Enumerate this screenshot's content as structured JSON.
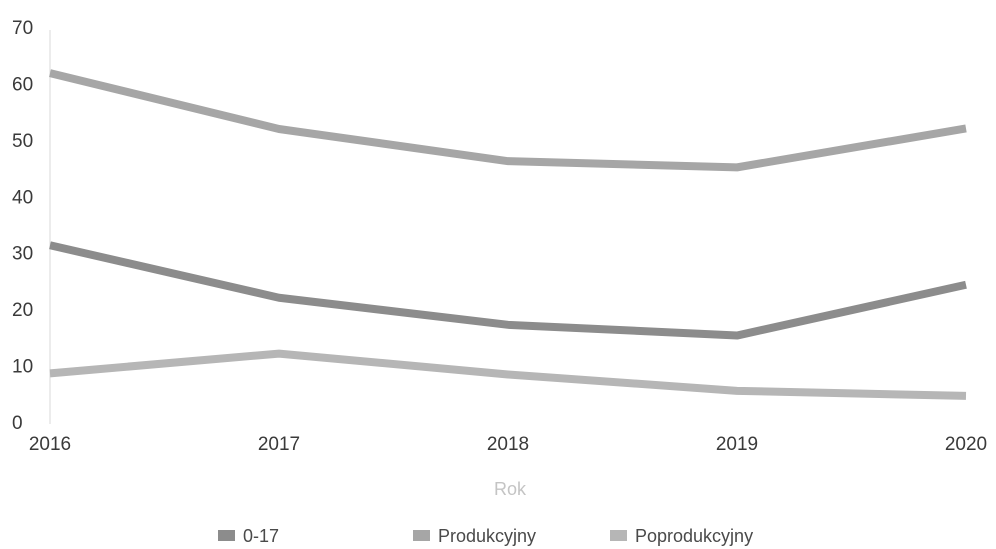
{
  "chart_data": {
    "type": "line",
    "title": "",
    "xlabel": "Rok",
    "ylabel": "",
    "categories": [
      "2016",
      "2017",
      "2018",
      "2019",
      "2020"
    ],
    "yticks": [
      "0",
      "10",
      "20",
      "30",
      "40",
      "50",
      "60",
      "70"
    ],
    "ylim": [
      0,
      70
    ],
    "grid": false,
    "legend_position": "bottom",
    "series": [
      {
        "name": "0-17",
        "values": [
          31.5,
          22.2,
          17.4,
          15.5,
          24.5
        ],
        "color": "#8c8c8c"
      },
      {
        "name": "Produkcyjny",
        "values": [
          62.0,
          52.1,
          46.4,
          45.3,
          52.2
        ],
        "color": "#a6a6a6"
      },
      {
        "name": "Poprodukcyjny",
        "values": [
          8.8,
          12.3,
          8.6,
          5.7,
          4.8
        ],
        "color": "#b6b6b6"
      }
    ]
  }
}
